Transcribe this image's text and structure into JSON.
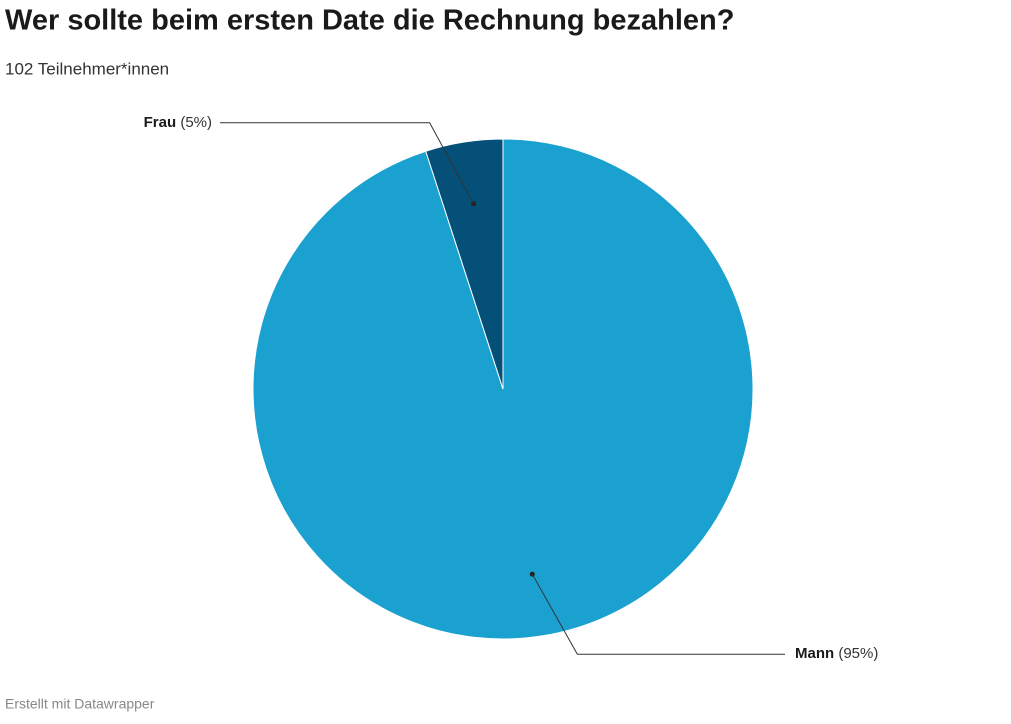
{
  "chart_data": {
    "type": "pie",
    "title": "Wer sollte beim ersten Date die Rechnung bezahlen?",
    "subtitle": "102 Teilnehmer*innen",
    "categories": [
      "Mann",
      "Frau"
    ],
    "values": [
      95,
      5
    ],
    "value_labels": [
      "(95%)",
      "(5%)"
    ],
    "colors": [
      "#1aa1cf",
      "#045079"
    ],
    "credit": "Erstellt mit Datawrapper"
  }
}
